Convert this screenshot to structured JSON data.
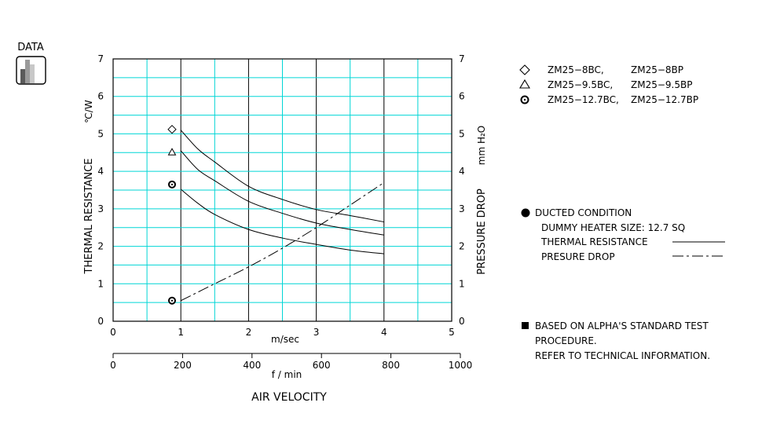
{
  "badge": {
    "label": "DATA",
    "icon": "bar-chart-icon"
  },
  "colors": {
    "grid": "#00d6d6",
    "frame": "#000000",
    "badge_bars": [
      "#5a5a5a",
      "#9a9a9a",
      "#c8c8c8"
    ]
  },
  "chart_data": {
    "type": "line",
    "xlabel": "AIR VELOCITY",
    "ylabel_left": "THERMAL RESISTANCE",
    "unit_left": "℃/W",
    "ylabel_right": "PRESSURE DROP",
    "unit_right": "mm H₂O",
    "x_unit_top": "m/sec",
    "x_unit_bottom": "f / min",
    "xlim": [
      0,
      5
    ],
    "ylim_left": [
      0,
      7
    ],
    "ylim_right": [
      0,
      7
    ],
    "x_ticks": [
      "0",
      "1",
      "2",
      "3",
      "4",
      "5"
    ],
    "y_ticks_left": [
      "0",
      "1",
      "2",
      "3",
      "4",
      "5",
      "6",
      "7"
    ],
    "y_ticks_right": [
      "0",
      "1",
      "2",
      "3",
      "4",
      "5",
      "6",
      "7"
    ],
    "x2_ticks": [
      "0",
      "200",
      "400",
      "600",
      "800",
      "1000"
    ],
    "x2_tick_values": [
      0,
      200,
      400,
      600,
      800,
      1000
    ],
    "x2_lim": [
      0,
      1000
    ],
    "grid": true,
    "series": [
      {
        "name": "ZM25-8BC, ZM25-8BP",
        "marker": "diamond",
        "style": "solid",
        "x": [
          1.0,
          1.25,
          1.5,
          2.0,
          2.5,
          3.0,
          3.5,
          4.0
        ],
        "y": [
          5.1,
          4.6,
          4.25,
          3.6,
          3.25,
          2.98,
          2.82,
          2.65
        ]
      },
      {
        "name": "ZM25-9.5BC, ZM25-9.5BP",
        "marker": "triangle",
        "style": "solid",
        "x": [
          1.0,
          1.25,
          1.5,
          2.0,
          2.5,
          3.0,
          3.5,
          4.0
        ],
        "y": [
          4.55,
          4.05,
          3.75,
          3.2,
          2.88,
          2.62,
          2.45,
          2.3
        ]
      },
      {
        "name": "ZM25-12.7BC, ZM25-12.7BP",
        "marker": "circle-dot",
        "style": "solid",
        "x": [
          1.0,
          1.25,
          1.5,
          2.0,
          2.5,
          3.0,
          3.5,
          4.0
        ],
        "y": [
          3.52,
          3.15,
          2.85,
          2.45,
          2.22,
          2.05,
          1.9,
          1.8
        ]
      },
      {
        "name": "PRESURE DROP",
        "marker": "none",
        "style": "dash-dot",
        "x": [
          1.0,
          1.5,
          2.0,
          2.5,
          3.0,
          3.5,
          4.0
        ],
        "y": [
          0.55,
          1.0,
          1.45,
          1.95,
          2.5,
          3.1,
          3.7
        ]
      }
    ],
    "markers": [
      {
        "shape": "diamond",
        "x": 0.87,
        "y": 5.12
      },
      {
        "shape": "triangle",
        "x": 0.87,
        "y": 4.5
      },
      {
        "shape": "circle-dot",
        "x": 0.87,
        "y": 3.65
      },
      {
        "shape": "circle-dot",
        "x": 0.87,
        "y": 0.55
      }
    ]
  },
  "legend": {
    "items": [
      {
        "icon": "diamond",
        "col1": "ZM25−8BC,",
        "col2": "ZM25−8BP"
      },
      {
        "icon": "triangle",
        "col1": "ZM25−9.5BC,",
        "col2": "ZM25−9.5BP"
      },
      {
        "icon": "circle-dot",
        "col1": "ZM25−12.7BC,",
        "col2": "ZM25−12.7BP"
      }
    ]
  },
  "conditions": {
    "heading": "DUCTED CONDITION",
    "heater": "DUMMY HEATER SIZE: 12.7 SQ",
    "thermal_label": "THERMAL RESISTANCE",
    "pressure_label": "PRESURE DROP"
  },
  "note": {
    "line1": "BASED ON ALPHA'S STANDARD TEST",
    "line2": "PROCEDURE.",
    "line3": "REFER TO TECHNICAL INFORMATION."
  }
}
